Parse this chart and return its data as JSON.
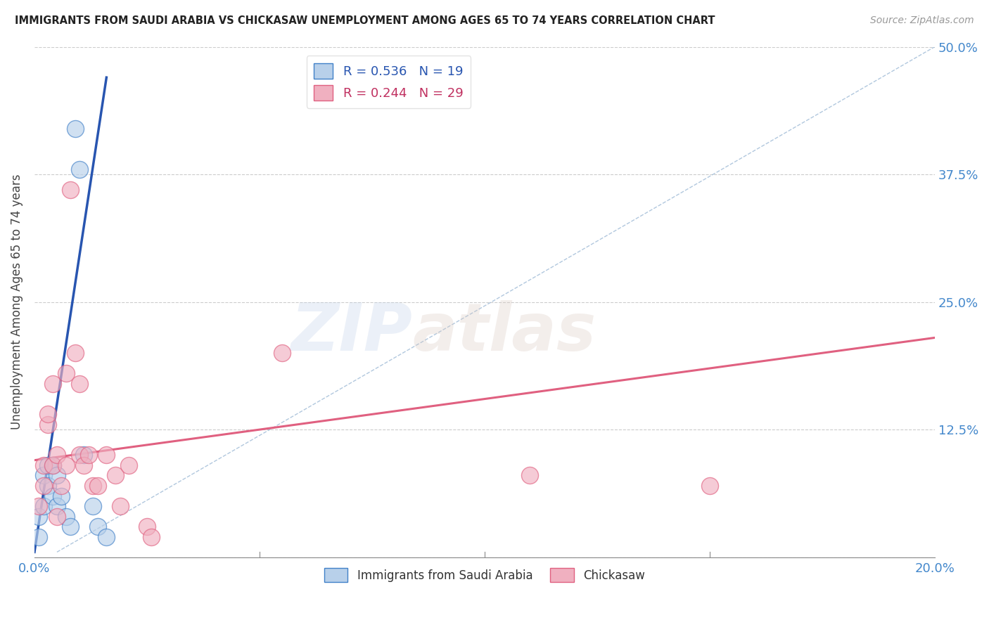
{
  "title": "IMMIGRANTS FROM SAUDI ARABIA VS CHICKASAW UNEMPLOYMENT AMONG AGES 65 TO 74 YEARS CORRELATION CHART",
  "source": "Source: ZipAtlas.com",
  "ylabel": "Unemployment Among Ages 65 to 74 years",
  "xlim": [
    0.0,
    0.2
  ],
  "ylim": [
    0.0,
    0.5
  ],
  "xticks": [
    0.0,
    0.05,
    0.1,
    0.15,
    0.2
  ],
  "xticklabels": [
    "0.0%",
    "",
    "",
    "",
    "20.0%"
  ],
  "yticks": [
    0.0,
    0.125,
    0.25,
    0.375,
    0.5
  ],
  "yticklabels": [
    "",
    "12.5%",
    "25.0%",
    "37.5%",
    "50.0%"
  ],
  "legend_r1": "R = 0.536",
  "legend_n1": "N = 19",
  "legend_r2": "R = 0.244",
  "legend_n2": "N = 29",
  "color_blue_fill": "#b8d0ea",
  "color_pink_fill": "#f0b0c0",
  "color_blue_edge": "#4080c8",
  "color_pink_edge": "#e06080",
  "color_blue_line": "#2855b0",
  "color_pink_line": "#e06080",
  "color_dashed": "#90b0d0",
  "watermark_zip": "ZIP",
  "watermark_atlas": "atlas",
  "blue_scatter_x": [
    0.001,
    0.001,
    0.002,
    0.002,
    0.003,
    0.003,
    0.004,
    0.004,
    0.005,
    0.005,
    0.006,
    0.007,
    0.008,
    0.009,
    0.01,
    0.011,
    0.013,
    0.014,
    0.016
  ],
  "blue_scatter_y": [
    0.02,
    0.04,
    0.05,
    0.08,
    0.07,
    0.09,
    0.06,
    0.09,
    0.05,
    0.08,
    0.06,
    0.04,
    0.03,
    0.42,
    0.38,
    0.1,
    0.05,
    0.03,
    0.02
  ],
  "pink_scatter_x": [
    0.001,
    0.002,
    0.002,
    0.003,
    0.003,
    0.004,
    0.004,
    0.005,
    0.005,
    0.006,
    0.007,
    0.007,
    0.008,
    0.009,
    0.01,
    0.01,
    0.011,
    0.012,
    0.013,
    0.014,
    0.016,
    0.018,
    0.019,
    0.021,
    0.025,
    0.026,
    0.055,
    0.11,
    0.15
  ],
  "pink_scatter_y": [
    0.05,
    0.07,
    0.09,
    0.13,
    0.14,
    0.09,
    0.17,
    0.1,
    0.04,
    0.07,
    0.09,
    0.18,
    0.36,
    0.2,
    0.1,
    0.17,
    0.09,
    0.1,
    0.07,
    0.07,
    0.1,
    0.08,
    0.05,
    0.09,
    0.03,
    0.02,
    0.2,
    0.08,
    0.07
  ],
  "blue_line_x": [
    0.0,
    0.016
  ],
  "blue_line_y": [
    0.005,
    0.47
  ],
  "pink_line_x": [
    0.0,
    0.2
  ],
  "pink_line_y": [
    0.095,
    0.215
  ],
  "dashed_line_x": [
    0.005,
    0.2
  ],
  "dashed_line_y": [
    0.005,
    0.5
  ]
}
